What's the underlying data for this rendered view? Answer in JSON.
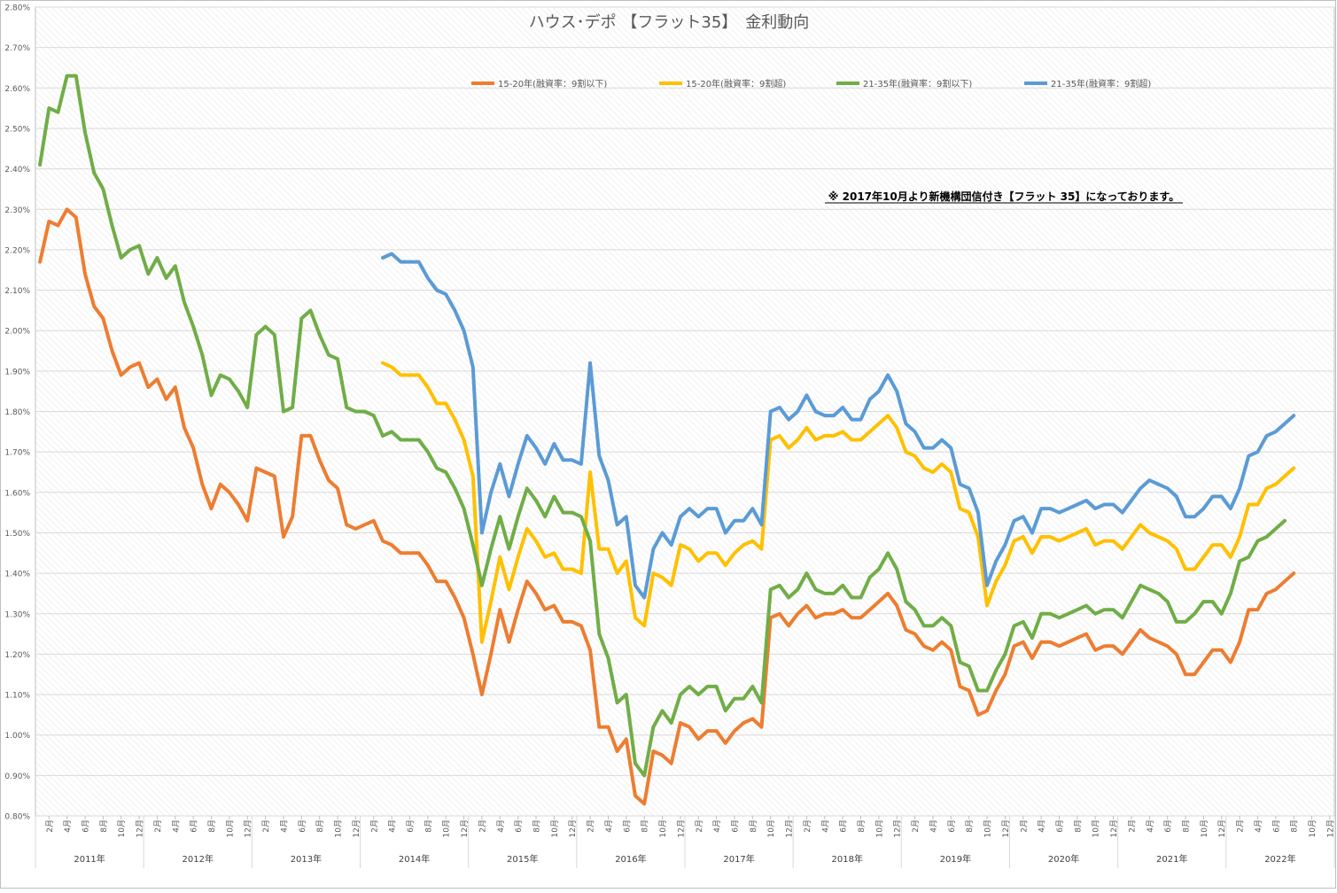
{
  "chart_data": {
    "type": "line",
    "title": "ハウス･デポ 【フラット35】　金利動向",
    "note": "※ 2017年10月より新機構団信付き【フラット 35】になっております。",
    "ylim": [
      0.8,
      2.8
    ],
    "y_ticks": [
      "0.80%",
      "0.90%",
      "1.00%",
      "1.10%",
      "1.20%",
      "1.30%",
      "1.40%",
      "1.50%",
      "1.60%",
      "1.70%",
      "1.80%",
      "1.90%",
      "2.00%",
      "2.10%",
      "2.20%",
      "2.30%",
      "2.40%",
      "2.50%",
      "2.60%",
      "2.70%",
      "2.80%"
    ],
    "x_month_labels": [
      "2月",
      "4月",
      "6月",
      "8月",
      "10月",
      "12月",
      "2月",
      "4月",
      "6月",
      "8月",
      "10月",
      "12月",
      "2月",
      "4月",
      "6月",
      "8月",
      "10月",
      "12月",
      "2月",
      "4月",
      "6月",
      "8月",
      "10月",
      "12月",
      "2月",
      "4月",
      "6月",
      "8月",
      "10月",
      "12月",
      "2月",
      "4月",
      "6月",
      "8月",
      "10月",
      "12月",
      "2月",
      "4月",
      "6月",
      "8月",
      "10月",
      "12月",
      "2月",
      "4月",
      "6月",
      "8月",
      "10月",
      "12月",
      "2月",
      "4月",
      "6月",
      "8月",
      "10月",
      "12月",
      "2月",
      "4月",
      "6月",
      "8月",
      "10月",
      "12月",
      "2月",
      "4月",
      "6月",
      "8月",
      "10月",
      "12月",
      "2月",
      "4月",
      "6月",
      "8月",
      "10月",
      "12月",
      "2月",
      "4月",
      "6月",
      "8月",
      "10月",
      "12月"
    ],
    "x_year_labels": [
      "2011年",
      "2012年",
      "2013年",
      "2014年",
      "2015年",
      "2016年",
      "2017年",
      "2018年",
      "2019年",
      "2020年",
      "2021年",
      "2022年"
    ],
    "grid": true,
    "legend_position": "top",
    "x_start": "2011年1月",
    "series": [
      {
        "name": "15-20年(融資率：9割以下)",
        "color": "#ed7d31",
        "start_index": 0,
        "values": [
          2.17,
          2.27,
          2.26,
          2.3,
          2.28,
          2.14,
          2.06,
          2.03,
          1.95,
          1.89,
          1.91,
          1.92,
          1.86,
          1.88,
          1.83,
          1.86,
          1.76,
          1.71,
          1.62,
          1.56,
          1.62,
          1.6,
          1.57,
          1.53,
          1.66,
          1.65,
          1.64,
          1.49,
          1.54,
          1.74,
          1.74,
          1.68,
          1.63,
          1.61,
          1.52,
          1.51,
          1.52,
          1.53,
          1.48,
          1.47,
          1.45,
          1.45,
          1.45,
          1.42,
          1.38,
          1.38,
          1.34,
          1.29,
          1.2,
          1.1,
          1.2,
          1.31,
          1.23,
          1.31,
          1.38,
          1.35,
          1.31,
          1.32,
          1.28,
          1.28,
          1.27,
          1.21,
          1.02,
          1.02,
          0.96,
          0.99,
          0.85,
          0.83,
          0.96,
          0.95,
          0.93,
          1.03,
          1.02,
          0.99,
          1.01,
          1.01,
          0.98,
          1.01,
          1.03,
          1.04,
          1.02,
          1.29,
          1.3,
          1.27,
          1.3,
          1.32,
          1.29,
          1.3,
          1.3,
          1.31,
          1.29,
          1.29,
          1.31,
          1.33,
          1.35,
          1.32,
          1.26,
          1.25,
          1.22,
          1.21,
          1.23,
          1.21,
          1.12,
          1.11,
          1.05,
          1.06,
          1.11,
          1.15,
          1.22,
          1.23,
          1.19,
          1.23,
          1.23,
          1.22,
          1.23,
          1.24,
          1.25,
          1.21,
          1.22,
          1.22,
          1.2,
          1.23,
          1.26,
          1.24,
          1.23,
          1.22,
          1.2,
          1.15,
          1.15,
          1.18,
          1.21,
          1.21,
          1.18,
          1.23,
          1.31,
          1.31,
          1.35,
          1.36,
          1.38,
          1.4
        ]
      },
      {
        "name": "15-20年(融資率：9割超)",
        "color": "#ffc000",
        "start_index": 38,
        "values": [
          1.92,
          1.91,
          1.89,
          1.89,
          1.89,
          1.86,
          1.82,
          1.82,
          1.78,
          1.73,
          1.64,
          1.23,
          1.33,
          1.44,
          1.36,
          1.44,
          1.51,
          1.48,
          1.44,
          1.45,
          1.41,
          1.41,
          1.4,
          1.65,
          1.46,
          1.46,
          1.4,
          1.43,
          1.29,
          1.27,
          1.4,
          1.39,
          1.37,
          1.47,
          1.46,
          1.43,
          1.45,
          1.45,
          1.42,
          1.45,
          1.47,
          1.48,
          1.46,
          1.73,
          1.74,
          1.71,
          1.73,
          1.76,
          1.73,
          1.74,
          1.74,
          1.75,
          1.73,
          1.73,
          1.75,
          1.77,
          1.79,
          1.76,
          1.7,
          1.69,
          1.66,
          1.65,
          1.67,
          1.65,
          1.56,
          1.55,
          1.49,
          1.32,
          1.38,
          1.42,
          1.48,
          1.49,
          1.45,
          1.49,
          1.49,
          1.48,
          1.49,
          1.5,
          1.51,
          1.47,
          1.48,
          1.48,
          1.46,
          1.49,
          1.52,
          1.5,
          1.49,
          1.48,
          1.46,
          1.41,
          1.41,
          1.44,
          1.47,
          1.47,
          1.44,
          1.49,
          1.57,
          1.57,
          1.61,
          1.62,
          1.64,
          1.66
        ]
      },
      {
        "name": "21-35年(融資率：9割以下)",
        "color": "#70ad47",
        "start_index": 0,
        "values": [
          2.41,
          2.55,
          2.54,
          2.63,
          2.63,
          2.49,
          2.39,
          2.35,
          2.26,
          2.18,
          2.2,
          2.21,
          2.14,
          2.18,
          2.13,
          2.16,
          2.07,
          2.01,
          1.94,
          1.84,
          1.89,
          1.88,
          1.85,
          1.81,
          1.99,
          2.01,
          1.99,
          1.8,
          1.81,
          2.03,
          2.05,
          1.99,
          1.94,
          1.93,
          1.81,
          1.8,
          1.8,
          1.79,
          1.74,
          1.75,
          1.73,
          1.73,
          1.73,
          1.7,
          1.66,
          1.65,
          1.61,
          1.56,
          1.47,
          1.37,
          1.46,
          1.54,
          1.46,
          1.54,
          1.61,
          1.58,
          1.54,
          1.59,
          1.55,
          1.55,
          1.54,
          1.48,
          1.25,
          1.19,
          1.08,
          1.1,
          0.93,
          0.9,
          1.02,
          1.06,
          1.03,
          1.1,
          1.12,
          1.1,
          1.12,
          1.12,
          1.06,
          1.09,
          1.09,
          1.12,
          1.08,
          1.36,
          1.37,
          1.34,
          1.36,
          1.4,
          1.36,
          1.35,
          1.35,
          1.37,
          1.34,
          1.34,
          1.39,
          1.41,
          1.45,
          1.41,
          1.33,
          1.31,
          1.27,
          1.27,
          1.29,
          1.27,
          1.18,
          1.17,
          1.11,
          1.11,
          1.16,
          1.2,
          1.27,
          1.28,
          1.24,
          1.3,
          1.3,
          1.29,
          1.3,
          1.31,
          1.32,
          1.3,
          1.31,
          1.31,
          1.29,
          1.33,
          1.37,
          1.36,
          1.35,
          1.33,
          1.28,
          1.28,
          1.3,
          1.33,
          1.33,
          1.3,
          1.35,
          1.43,
          1.44,
          1.48,
          1.49,
          1.51,
          1.53
        ]
      },
      {
        "name": "21-35年(融資率：9割超)",
        "color": "#5b9bd5",
        "start_index": 38,
        "values": [
          2.18,
          2.19,
          2.17,
          2.17,
          2.17,
          2.13,
          2.1,
          2.09,
          2.05,
          2.0,
          1.91,
          1.5,
          1.6,
          1.67,
          1.59,
          1.67,
          1.74,
          1.71,
          1.67,
          1.72,
          1.68,
          1.68,
          1.67,
          1.92,
          1.69,
          1.63,
          1.52,
          1.54,
          1.37,
          1.34,
          1.46,
          1.5,
          1.47,
          1.54,
          1.56,
          1.54,
          1.56,
          1.56,
          1.5,
          1.53,
          1.53,
          1.56,
          1.52,
          1.8,
          1.81,
          1.78,
          1.8,
          1.84,
          1.8,
          1.79,
          1.79,
          1.81,
          1.78,
          1.78,
          1.83,
          1.85,
          1.89,
          1.85,
          1.77,
          1.75,
          1.71,
          1.71,
          1.73,
          1.71,
          1.62,
          1.61,
          1.55,
          1.37,
          1.43,
          1.47,
          1.53,
          1.54,
          1.5,
          1.56,
          1.56,
          1.55,
          1.56,
          1.57,
          1.58,
          1.56,
          1.57,
          1.57,
          1.55,
          1.58,
          1.61,
          1.63,
          1.62,
          1.61,
          1.59,
          1.54,
          1.54,
          1.56,
          1.59,
          1.59,
          1.56,
          1.61,
          1.69,
          1.7,
          1.74,
          1.75,
          1.77,
          1.79
        ]
      }
    ]
  }
}
